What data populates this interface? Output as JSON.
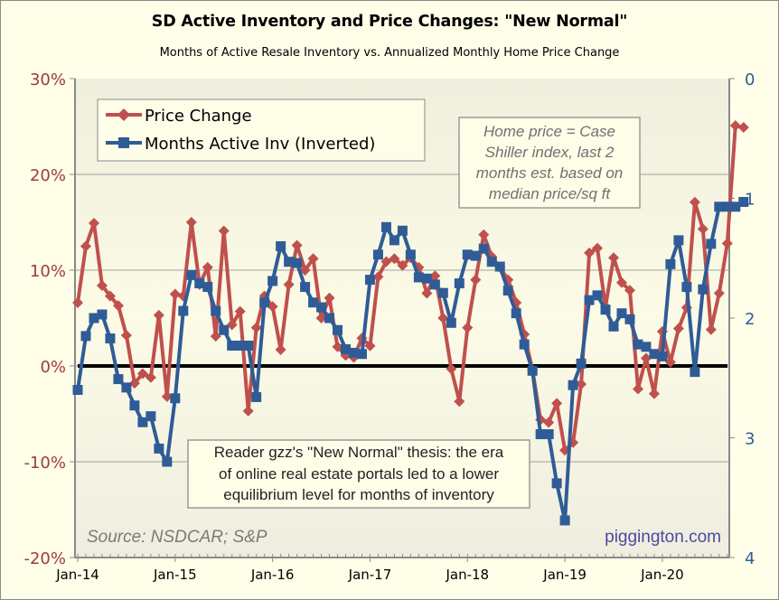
{
  "chart_data": {
    "type": "line",
    "title": "SD Active Inventory and Price Changes: \"New Normal\"",
    "subtitle": "Months of Active Resale Inventory vs. Annualized Monthly Home Price Change",
    "xlabel": "",
    "ylabel_left": "",
    "ylabel_right": "",
    "x_start": "Jan-14",
    "x_tick_labels": [
      "Jan-14",
      "Jan-15",
      "Jan-16",
      "Jan-17",
      "Jan-18",
      "Jan-19",
      "Jan-20"
    ],
    "y_left": {
      "range": [
        -20,
        30
      ],
      "ticks": [
        30,
        20,
        10,
        0,
        -10,
        -20
      ],
      "tick_labels": [
        "30%",
        "20%",
        "10%",
        "0%",
        "-10%",
        "-20%"
      ],
      "color": "#9e3b3b"
    },
    "y_right": {
      "range": [
        0,
        4
      ],
      "inverted": true,
      "ticks": [
        0,
        1,
        2,
        3,
        4
      ],
      "tick_labels": [
        "0",
        "1",
        "2",
        "3",
        "4"
      ],
      "color": "#2f5c97"
    },
    "grid": true,
    "zero_line": true,
    "legend": {
      "position": "top-left",
      "entries": [
        "Price Change",
        "Months Active Inv (Inverted)"
      ]
    },
    "series": [
      {
        "name": "Price Change",
        "axis": "left",
        "unit": "%",
        "color": "#c0504d",
        "marker": "diamond",
        "values": [
          6.6,
          12.5,
          14.9,
          8.4,
          7.3,
          6.3,
          3.2,
          -1.8,
          -0.8,
          -1.2,
          5.3,
          -3.2,
          7.5,
          7.3,
          15.0,
          8.5,
          10.3,
          3.1,
          14.1,
          4.3,
          5.7,
          -4.7,
          4.0,
          7.3,
          6.2,
          1.7,
          8.5,
          12.6,
          10.0,
          11.2,
          5.0,
          7.1,
          2.0,
          1.1,
          0.9,
          2.9,
          2.1,
          9.3,
          10.9,
          11.2,
          10.5,
          11.3,
          10.3,
          7.6,
          9.4,
          5.0,
          -0.3,
          -3.7,
          4.0,
          9.0,
          13.7,
          11.4,
          10.3,
          9.0,
          6.6,
          3.3,
          -0.4,
          -5.6,
          -5.9,
          -3.9,
          -8.8,
          -8.0,
          -1.9,
          11.8,
          12.3,
          6.2,
          11.3,
          8.7,
          7.9,
          -2.4,
          0.8,
          -2.9,
          3.6,
          0.4,
          3.9,
          6.1,
          17.1,
          14.3,
          3.8,
          7.6,
          12.8,
          25.1,
          24.9
        ]
      },
      {
        "name": "Months Active Inv (Inverted)",
        "axis": "right",
        "unit": "months",
        "color": "#2f5c97",
        "marker": "square",
        "values": [
          2.6,
          2.15,
          2.0,
          1.97,
          2.17,
          2.51,
          2.58,
          2.73,
          2.87,
          2.82,
          3.09,
          3.2,
          2.67,
          1.94,
          1.64,
          1.71,
          1.74,
          1.94,
          2.1,
          2.23,
          2.23,
          2.23,
          2.66,
          1.87,
          1.69,
          1.4,
          1.53,
          1.54,
          1.74,
          1.87,
          1.91,
          2.0,
          2.1,
          2.26,
          2.29,
          2.3,
          1.68,
          1.47,
          1.24,
          1.35,
          1.27,
          1.47,
          1.66,
          1.67,
          1.72,
          1.79,
          2.04,
          1.71,
          1.47,
          1.48,
          1.42,
          1.53,
          1.57,
          1.77,
          1.96,
          2.22,
          2.44,
          2.97,
          2.97,
          3.38,
          3.69,
          2.56,
          2.38,
          1.85,
          1.81,
          1.93,
          2.07,
          1.96,
          2.01,
          2.22,
          2.24,
          2.3,
          2.32,
          1.55,
          1.35,
          1.74,
          2.45,
          1.76,
          1.38,
          1.07,
          1.07,
          1.07,
          1.03
        ]
      }
    ],
    "annotations": {
      "note_lines": [
        "Home price = Case",
        "Shiller index, last 2",
        "months est. based on",
        "median price/sq ft"
      ],
      "thesis_lines": [
        "Reader gzz's \"New Normal\" thesis: the era",
        "of online real estate portals led to a lower",
        "equilibrium level for months of inventory"
      ],
      "source": "Source: NSDCAR; S&P",
      "brand": "piggington.com"
    }
  }
}
